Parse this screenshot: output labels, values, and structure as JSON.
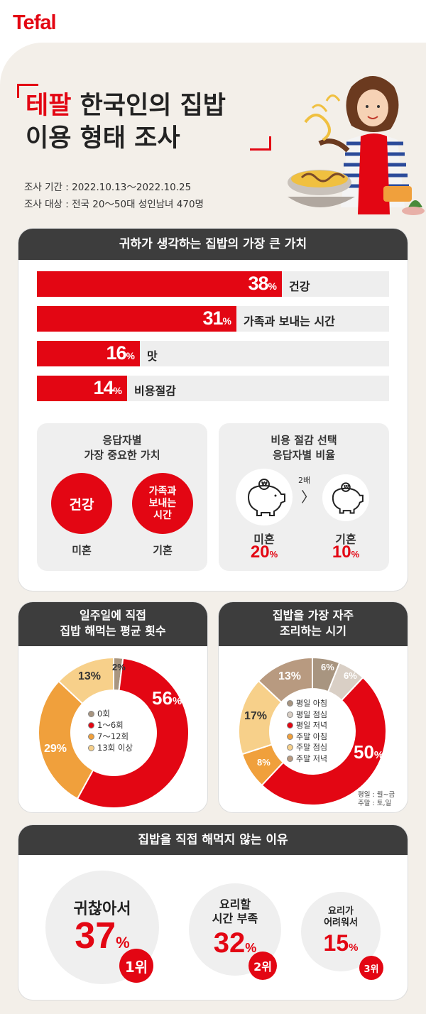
{
  "brand": "Tefal",
  "title": {
    "red": "테팔",
    "line1_rest": " 한국인의 집밥",
    "line2": "이용 형태 조사"
  },
  "meta": {
    "period": "조사 기간 : 2022.10.13～2022.10.25",
    "target": "조사 대상 : 전국 20～50대 성인남녀 470명"
  },
  "values_card": {
    "header": "귀하가 생각하는 집밥의 가장 큰 가치",
    "bars": [
      {
        "value": "38",
        "unit": "%",
        "label": "건강",
        "fraction": 0.38
      },
      {
        "value": "31",
        "unit": "%",
        "label": "가족과 보내는 시간",
        "fraction": 0.31
      },
      {
        "value": "16",
        "unit": "%",
        "label": "맛",
        "fraction": 0.16
      },
      {
        "value": "14",
        "unit": "%",
        "label": "비용절감",
        "fraction": 0.14
      }
    ],
    "left": {
      "title1": "응답자별",
      "title2": "가장 중요한 가치",
      "c1": "건강",
      "c2a": "가족과",
      "c2b": "보내는",
      "c2c": "시간",
      "cap1": "미혼",
      "cap2": "기혼"
    },
    "right": {
      "title1": "비용 절감 선택",
      "title2": "응답자별 비율",
      "ratio": "2배",
      "arrow": "〉",
      "cap1": "미혼",
      "pct1": "20",
      "cap2": "기혼",
      "pct2": "10",
      "unit": "%",
      "coin": "₩"
    }
  },
  "freq_card": {
    "header1": "일주일에 직접",
    "header2": "집밥 해먹는 평균 횟수",
    "chart_data": {
      "type": "pie",
      "categories": [
        "0회",
        "1～6회",
        "7～12회",
        "13회 이상"
      ],
      "values": [
        2,
        56,
        29,
        13
      ],
      "colors": [
        "#a89580",
        "#e30613",
        "#f0a03c",
        "#f7d08a"
      ]
    },
    "labels": {
      "p0": "2%",
      "p1v": "56",
      "p1u": "%",
      "p2": "29%",
      "p3": "13%"
    }
  },
  "time_card": {
    "header1": "집밥을 가장 자주",
    "header2": "조리하는 시기",
    "chart_data": {
      "type": "pie",
      "categories": [
        "평일 아침",
        "평일 점심",
        "평일 저녁",
        "주말 아침",
        "주말 점심",
        "주말 저녁"
      ],
      "values": [
        6,
        6,
        50,
        8,
        17,
        13
      ],
      "colors": [
        "#a89580",
        "#d9cfc5",
        "#e30613",
        "#f0a03c",
        "#f7d08a",
        "#b89a80"
      ]
    },
    "labels": {
      "p0": "6%",
      "p1": "6%",
      "p2v": "50",
      "p2u": "%",
      "p3": "8%",
      "p4": "17%",
      "p5": "13%"
    },
    "note1": "평일 : 월~금",
    "note2": "주말 : 토,일"
  },
  "reasons_card": {
    "header": "집밥을 직접 해먹지 않는 이유",
    "r1": {
      "text": "귀찮아서",
      "value": "37",
      "unit": "%",
      "rank": "1위"
    },
    "r2": {
      "text1": "요리할",
      "text2": "시간 부족",
      "value": "32",
      "unit": "%",
      "rank": "2위"
    },
    "r3": {
      "text1": "요리가",
      "text2": "어려워서",
      "value": "15",
      "unit": "%",
      "rank": "3위"
    }
  }
}
